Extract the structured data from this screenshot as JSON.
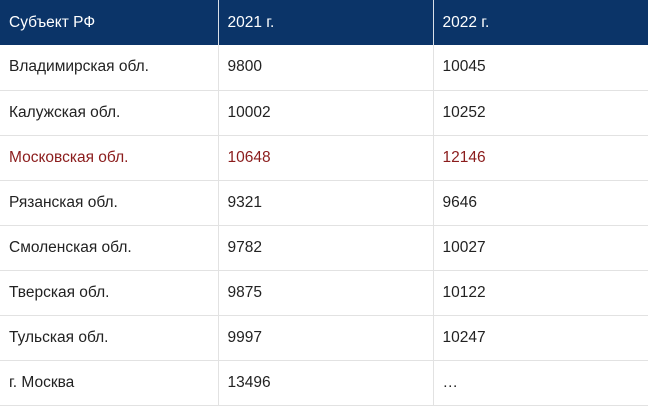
{
  "table": {
    "header": [
      "Субъект РФ",
      "2021 г.",
      "2022 г."
    ],
    "rows": [
      [
        "Владимирская обл.",
        "9800",
        "10045"
      ],
      [
        "Калужская обл.",
        "10002",
        "10252"
      ],
      [
        "Московская обл.",
        "10648",
        "12146"
      ],
      [
        "Рязанская обл.",
        "9321",
        "9646"
      ],
      [
        "Смоленская обл.",
        "9782",
        "10027"
      ],
      [
        "Тверская обл.",
        "9875",
        "10122"
      ],
      [
        "Тульская обл.",
        "9997",
        "10247"
      ],
      [
        "г. Москва",
        "13496",
        "…"
      ]
    ]
  }
}
